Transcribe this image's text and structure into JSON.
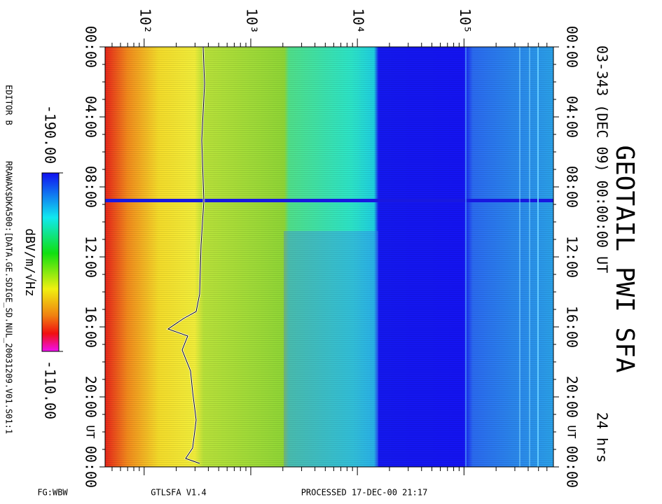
{
  "chart_data": {
    "type": "spectrogram",
    "title": "GEOTAIL PWI SFA",
    "subtitle": "03-343 (DEC 09) 00:00:00 UT",
    "duration": "24 hrs",
    "log_x": true,
    "xlim": [
      43,
      690000
    ],
    "xticks": [
      {
        "value": 100,
        "label": "10²"
      },
      {
        "value": 1000,
        "label": "10³"
      },
      {
        "value": 10000,
        "label": "10⁴"
      },
      {
        "value": 100000,
        "label": "10⁵"
      }
    ],
    "ylim": [
      0,
      24
    ],
    "yticks": [
      {
        "value": 0,
        "label": "00:00"
      },
      {
        "value": 4,
        "label": "04:00"
      },
      {
        "value": 8,
        "label": "08:00"
      },
      {
        "value": 12,
        "label": "12:00"
      },
      {
        "value": 16,
        "label": "16:00"
      },
      {
        "value": 20,
        "label": "20:00"
      },
      {
        "value": 24,
        "label": "00:00"
      }
    ],
    "ylabel": "UT",
    "colorbar": {
      "label": "dBV/m/√Hz",
      "clim": [
        -190,
        -110
      ],
      "ticks": [
        {
          "value": -190,
          "label": "-190.00"
        },
        {
          "value": -110,
          "label": "-110.00"
        }
      ]
    },
    "editor": "EDITOR B",
    "source": "RRAWAX$DKA500:[DATA.GE.SDIGE_SD.NUL_20031209.V01.S01:1",
    "footer": [
      "FG:WBW",
      "GTLSFA  V1.4",
      "PROCESSED 17-DEC-00  21:17"
    ]
  }
}
